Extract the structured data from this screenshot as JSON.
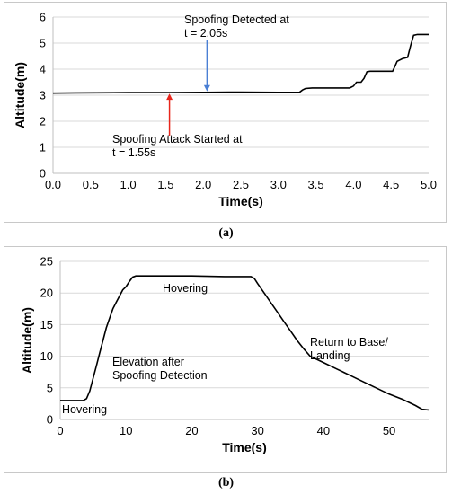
{
  "chart_data": [
    {
      "panel": "(a)",
      "type": "line",
      "xlabel": "Time(s)",
      "ylabel": "Altitude(m)",
      "xlim": [
        0,
        5
      ],
      "ylim": [
        0,
        6
      ],
      "xticks": [
        "0.0",
        "0.5",
        "1.0",
        "1.5",
        "2.0",
        "2.5",
        "3.0",
        "3.5",
        "4.0",
        "4.5",
        "5.0"
      ],
      "yticks": [
        "0",
        "1",
        "2",
        "3",
        "4",
        "5",
        "6"
      ],
      "grid": "horizontal",
      "series": [
        {
          "values": [
            [
              0,
              3.08
            ],
            [
              0.3,
              3.09
            ],
            [
              1.0,
              3.1
            ],
            [
              1.55,
              3.1
            ],
            [
              2.0,
              3.11
            ],
            [
              2.5,
              3.12
            ],
            [
              3.0,
              3.11
            ],
            [
              3.28,
              3.11
            ],
            [
              3.32,
              3.2
            ],
            [
              3.36,
              3.26
            ],
            [
              3.45,
              3.28
            ],
            [
              3.95,
              3.28
            ],
            [
              4.0,
              3.35
            ],
            [
              4.04,
              3.5
            ],
            [
              4.1,
              3.5
            ],
            [
              4.14,
              3.65
            ],
            [
              4.18,
              3.9
            ],
            [
              4.22,
              3.92
            ],
            [
              4.52,
              3.92
            ],
            [
              4.55,
              4.1
            ],
            [
              4.58,
              4.3
            ],
            [
              4.65,
              4.4
            ],
            [
              4.72,
              4.45
            ],
            [
              4.76,
              4.9
            ],
            [
              4.8,
              5.3
            ],
            [
              4.85,
              5.33
            ],
            [
              5.0,
              5.33
            ]
          ]
        }
      ],
      "annotations": [
        {
          "lines": [
            "Spoofing Detected at",
            "t = 2.05s"
          ],
          "x": 2.05,
          "arrow_color": "#4a7fd4"
        },
        {
          "lines": [
            "Spoofing Attack Started at",
            "t = 1.55s"
          ],
          "x": 1.55,
          "arrow_color": "#e8261c"
        }
      ]
    },
    {
      "panel": "(b)",
      "type": "line",
      "xlabel": "Time(s)",
      "ylabel": "Altitude(m)",
      "xlim": [
        0,
        56
      ],
      "ylim": [
        0,
        25
      ],
      "xticks": [
        "0",
        "10",
        "20",
        "30",
        "40",
        "50"
      ],
      "yticks": [
        "0",
        "5",
        "10",
        "15",
        "20",
        "25"
      ],
      "grid": "horizontal",
      "series": [
        {
          "values": [
            [
              0,
              3.0
            ],
            [
              3.5,
              3.0
            ],
            [
              4.0,
              3.3
            ],
            [
              4.5,
              4.5
            ],
            [
              5.0,
              6.5
            ],
            [
              5.5,
              8.5
            ],
            [
              6.0,
              10.5
            ],
            [
              6.5,
              12.5
            ],
            [
              7.0,
              14.5
            ],
            [
              7.5,
              16.0
            ],
            [
              8.0,
              17.5
            ],
            [
              8.5,
              18.5
            ],
            [
              9.0,
              19.5
            ],
            [
              9.5,
              20.5
            ],
            [
              10.0,
              21.0
            ],
            [
              10.5,
              21.8
            ],
            [
              11.0,
              22.5
            ],
            [
              11.5,
              22.7
            ],
            [
              15,
              22.7
            ],
            [
              20,
              22.7
            ],
            [
              25,
              22.6
            ],
            [
              29,
              22.6
            ],
            [
              29.5,
              22.3
            ],
            [
              30,
              21.5
            ],
            [
              31,
              20.0
            ],
            [
              32,
              18.5
            ],
            [
              33,
              17.0
            ],
            [
              34,
              15.5
            ],
            [
              35,
              14.0
            ],
            [
              36,
              12.5
            ],
            [
              37,
              11.2
            ],
            [
              38,
              10.0
            ],
            [
              40,
              9.0
            ],
            [
              42,
              8.0
            ],
            [
              44,
              7.0
            ],
            [
              46,
              6.0
            ],
            [
              48,
              5.0
            ],
            [
              50,
              4.0
            ],
            [
              52,
              3.2
            ],
            [
              54,
              2.2
            ],
            [
              55,
              1.6
            ],
            [
              56,
              1.5
            ]
          ]
        }
      ],
      "annotations": [
        {
          "lines": [
            "Hovering"
          ],
          "x": 20,
          "y": 22.7
        },
        {
          "lines": [
            "Elevation after",
            "Spoofing Detection"
          ],
          "x": 8,
          "y": 9
        },
        {
          "lines": [
            "Return to Base/",
            "Landing"
          ],
          "x": 38,
          "y": 12
        },
        {
          "lines": [
            "Hovering"
          ],
          "x": 1,
          "y": 1
        }
      ]
    }
  ],
  "captions": {
    "a": "(a)",
    "b": "(b)"
  }
}
